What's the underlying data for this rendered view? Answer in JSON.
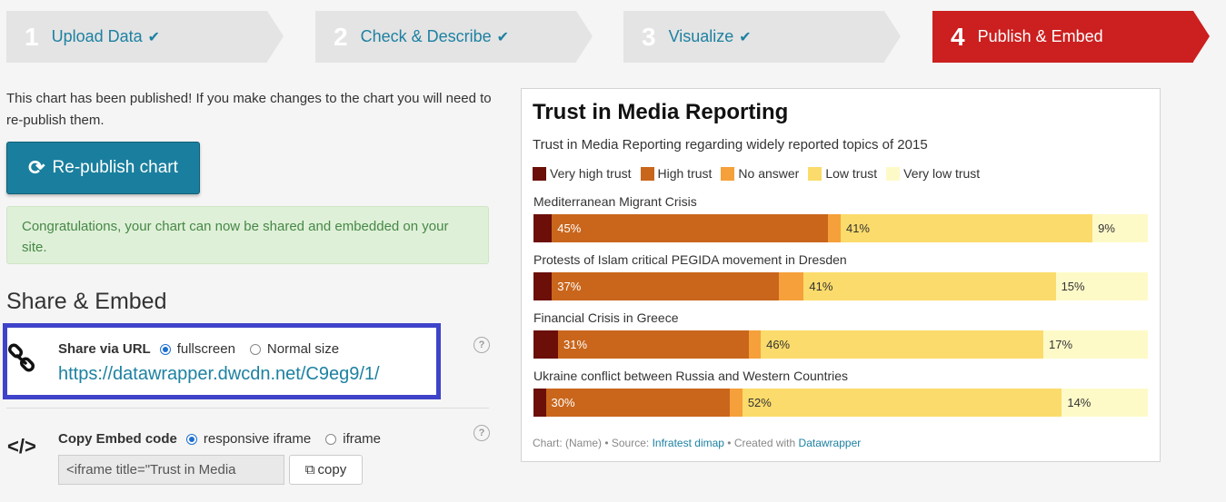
{
  "steps": [
    {
      "num": "1",
      "label": "Upload Data",
      "done": true
    },
    {
      "num": "2",
      "label": "Check & Describe",
      "done": true
    },
    {
      "num": "3",
      "label": "Visualize",
      "done": true
    },
    {
      "num": "4",
      "label": "Publish & Embed",
      "done": false
    }
  ],
  "publish": {
    "intro": "This chart has been published! If you make changes to the chart you will need to re-publish them.",
    "republish_label": "Re-publish chart",
    "success": "Congratulations, your chart can now be shared and embedded on your site."
  },
  "share": {
    "title": "Share & Embed",
    "url_label": "Share via URL",
    "opt_fullscreen": "fullscreen",
    "opt_normal": "Normal size",
    "url": "https://datawrapper.dwcdn.net/C9eg9/1/",
    "embed_label": "Copy Embed code",
    "opt_responsive": "responsive iframe",
    "opt_iframe": "iframe",
    "embed_code": "<iframe title=\"Trust in Media",
    "copy_label": "copy",
    "help": "?"
  },
  "chart_data": {
    "type": "bar",
    "stacked": true,
    "orientation": "horizontal",
    "title": "Trust in Media Reporting",
    "subtitle": "Trust in Media Reporting regarding widely reported topics of 2015",
    "legend": [
      {
        "name": "Very high trust",
        "color": "#6b0f08"
      },
      {
        "name": "High trust",
        "color": "#c9661c"
      },
      {
        "name": "No answer",
        "color": "#f5a03a"
      },
      {
        "name": "Low trust",
        "color": "#fbdb6b"
      },
      {
        "name": "Very low trust",
        "color": "#fefac8"
      }
    ],
    "categories": [
      "Mediterranean Migrant Crisis",
      "Protests of Islam critical PEGIDA movement in Dresden",
      "Financial Crisis in Greece",
      "Ukraine conflict between Russia and Western Countries"
    ],
    "series": [
      {
        "name": "Very high trust",
        "values": [
          3,
          3,
          4,
          2
        ]
      },
      {
        "name": "High trust",
        "values": [
          45,
          37,
          31,
          30
        ]
      },
      {
        "name": "No answer",
        "values": [
          2,
          4,
          2,
          2
        ]
      },
      {
        "name": "Low trust",
        "values": [
          41,
          41,
          46,
          52
        ]
      },
      {
        "name": "Very low trust",
        "values": [
          9,
          15,
          17,
          14
        ]
      }
    ],
    "labels": [
      [
        "45%",
        "41%",
        "9%"
      ],
      [
        "37%",
        "41%",
        "15%"
      ],
      [
        "31%",
        "46%",
        "17%"
      ],
      [
        "30%",
        "52%",
        "14%"
      ]
    ],
    "footer": {
      "prefix": "Chart: (Name) • Source: ",
      "source": "Infratest dimap",
      "mid": " • Created with ",
      "tool": "Datawrapper"
    }
  }
}
